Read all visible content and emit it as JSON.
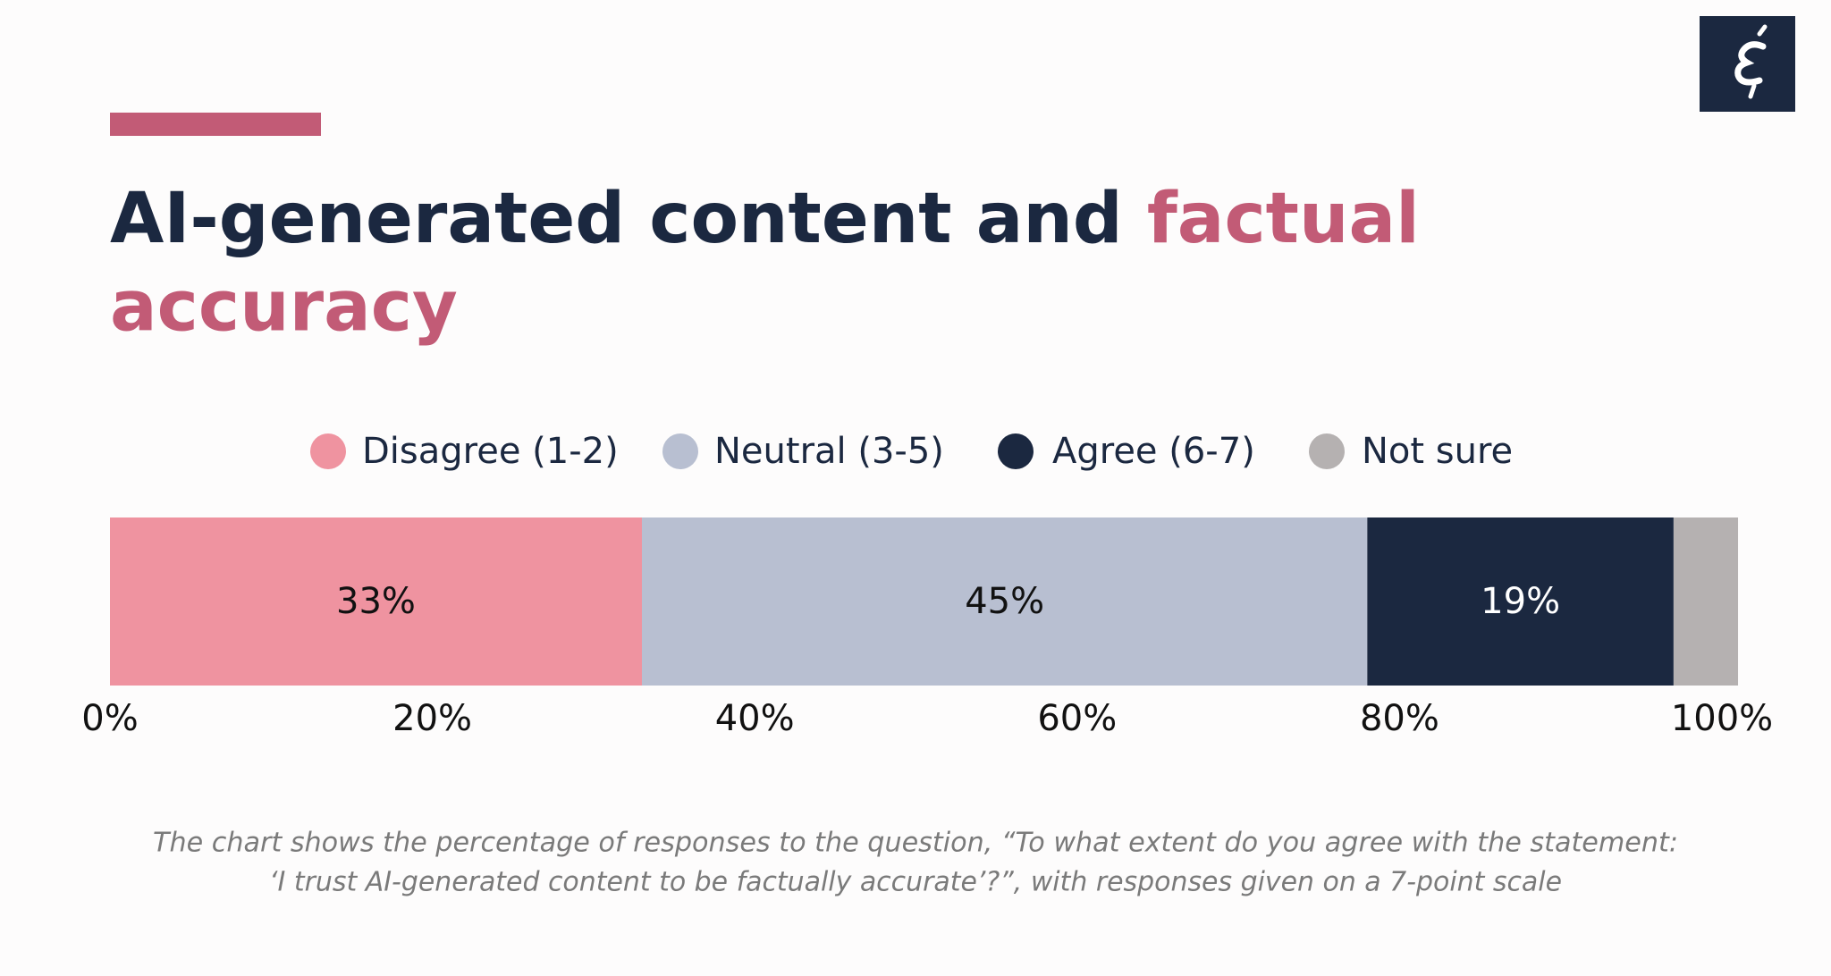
{
  "chart_data": {
    "type": "stacked-bar-horizontal",
    "title_parts": [
      "AI-generated content and",
      "factual",
      "accuracy"
    ],
    "series": [
      {
        "name": "Disagree (1-2)",
        "color": "#ef93a0",
        "values": [
          33
        ],
        "value_labels": [
          "33%"
        ]
      },
      {
        "name": "Neutral (3-5)",
        "color": "#b8bfd1",
        "values": [
          45
        ],
        "value_labels": [
          "45%"
        ]
      },
      {
        "name": "Agree (6-7)",
        "color": "#1b2840",
        "values": [
          19
        ],
        "value_labels": [
          "19%"
        ]
      },
      {
        "name": "Not sure",
        "color": "#b5b1b1",
        "values": [
          4
        ],
        "value_labels": [
          null
        ]
      }
    ],
    "xlim": [
      0,
      100
    ],
    "xticks": [
      {
        "value": 0,
        "label": "0%"
      },
      {
        "value": 20,
        "label": "20%"
      },
      {
        "value": 40,
        "label": "40%"
      },
      {
        "value": 60,
        "label": "60%"
      },
      {
        "value": 80,
        "label": "80%"
      },
      {
        "value": 100,
        "label": "100%"
      }
    ],
    "note": [
      "The chart shows the percentage of responses to the question, “To what extent do you agree with the statement:",
      "‘I trust AI-generated content to be factually accurate’?”, with responses given on a 7-point scale"
    ]
  }
}
